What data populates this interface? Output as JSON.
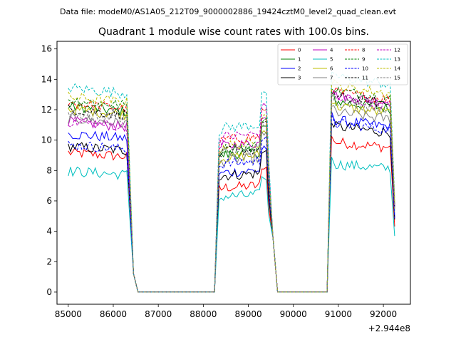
{
  "chart_data": {
    "type": "line",
    "suptitle": "Data file: modeM0/AS1A05_212T09_9000002886_19424cztM0_level2_quad_clean.evt",
    "title": "Quadrant 1 module wise count rates with 100.0s bins.",
    "xlabel": "",
    "ylabel": "",
    "x_offset_label": "+2.944e8",
    "xlim": [
      84750,
      92600
    ],
    "ylim": [
      -0.8,
      16.5
    ],
    "xticks": [
      85000,
      86000,
      87000,
      88000,
      89000,
      90000,
      91000,
      92000
    ],
    "xtick_labels": [
      "85000",
      "86000",
      "87000",
      "88000",
      "89000",
      "90000",
      "91000",
      "92000"
    ],
    "yticks": [
      0,
      2,
      4,
      6,
      8,
      10,
      12,
      14,
      16
    ],
    "ytick_labels": [
      "0",
      "2",
      "4",
      "6",
      "8",
      "10",
      "12",
      "14",
      "16"
    ],
    "legend_position": "top-right",
    "segments": [
      {
        "start": 85000,
        "end": 86300,
        "edge": 86350
      },
      {
        "start": 88350,
        "end": 89400,
        "edge": 89450
      },
      {
        "start": 90850,
        "end": 92150,
        "edge": 92250
      }
    ],
    "gap_ranges": [
      [
        86550,
        88250
      ],
      [
        89650,
        90750
      ]
    ],
    "series": [
      {
        "name": "0",
        "color": "#ff0000",
        "dashed": false,
        "level": [
          9.0,
          7.0,
          9.6
        ]
      },
      {
        "name": "1",
        "color": "#008000",
        "dashed": false,
        "level": [
          12.0,
          9.2,
          12.2
        ]
      },
      {
        "name": "2",
        "color": "#0000ff",
        "dashed": false,
        "level": [
          10.2,
          8.0,
          11.0
        ]
      },
      {
        "name": "3",
        "color": "#000000",
        "dashed": false,
        "level": [
          9.4,
          7.8,
          10.6
        ]
      },
      {
        "name": "4",
        "color": "#bf00bf",
        "dashed": false,
        "level": [
          11.0,
          9.8,
          12.6
        ]
      },
      {
        "name": "5",
        "color": "#00bfbf",
        "dashed": false,
        "level": [
          7.8,
          6.4,
          8.2
        ]
      },
      {
        "name": "6",
        "color": "#bfbf00",
        "dashed": false,
        "level": [
          11.8,
          9.0,
          11.9
        ]
      },
      {
        "name": "7",
        "color": "#808080",
        "dashed": false,
        "level": [
          11.2,
          8.8,
          11.5
        ]
      },
      {
        "name": "8",
        "color": "#ff0000",
        "dashed": true,
        "level": [
          12.2,
          10.2,
          12.8
        ]
      },
      {
        "name": "9",
        "color": "#008000",
        "dashed": true,
        "level": [
          12.4,
          9.6,
          12.9
        ]
      },
      {
        "name": "10",
        "color": "#0000ff",
        "dashed": true,
        "level": [
          9.5,
          8.6,
          10.8
        ]
      },
      {
        "name": "11",
        "color": "#000000",
        "dashed": true,
        "level": [
          11.8,
          9.4,
          12.5
        ]
      },
      {
        "name": "12",
        "color": "#bf00bf",
        "dashed": true,
        "level": [
          11.0,
          10.4,
          12.4
        ]
      },
      {
        "name": "13",
        "color": "#00bfbf",
        "dashed": true,
        "level": [
          13.2,
          11.0,
          13.8
        ]
      },
      {
        "name": "14",
        "color": "#bfbf00",
        "dashed": true,
        "level": [
          12.6,
          9.8,
          13.2
        ]
      },
      {
        "name": "15",
        "color": "#808080",
        "dashed": true,
        "level": [
          11.5,
          9.4,
          12.2
        ]
      }
    ]
  }
}
